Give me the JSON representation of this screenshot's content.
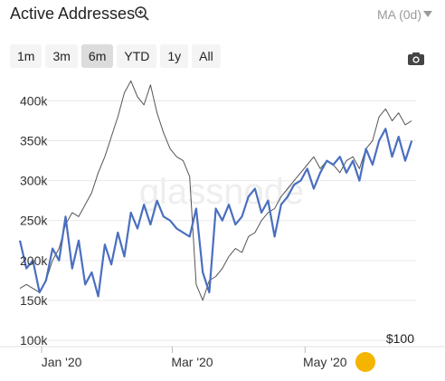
{
  "header": {
    "title": "Active Addresses",
    "ma_label": "MA (0d)"
  },
  "ranges": [
    {
      "label": "1m",
      "active": false
    },
    {
      "label": "3m",
      "active": false
    },
    {
      "label": "6m",
      "active": true
    },
    {
      "label": "YTD",
      "active": false
    },
    {
      "label": "1y",
      "active": false
    },
    {
      "label": "All",
      "active": false
    }
  ],
  "chart_data": {
    "type": "line",
    "title": "",
    "xlabel": "",
    "ylabel": "",
    "y_ticks": [
      "100k",
      "150k",
      "200k",
      "250k",
      "300k",
      "350k",
      "400k"
    ],
    "ylim": [
      100000,
      430000
    ],
    "x_ticks": [
      {
        "label": "Jan '20",
        "date": "2020-01-01"
      },
      {
        "label": "Mar '20",
        "date": "2020-03-01"
      },
      {
        "label": "May '20",
        "date": "2020-05-01"
      }
    ],
    "xlim": [
      "2019-12-22",
      "2020-06-21"
    ],
    "right_axis_label": "$100",
    "grid": "horizontal",
    "watermark": "glassnode",
    "series": [
      {
        "role": "active_addresses",
        "color": "#4a6fc0",
        "x": [
          "2019-12-22",
          "2019-12-25",
          "2019-12-28",
          "2019-12-31",
          "2020-01-03",
          "2020-01-06",
          "2020-01-09",
          "2020-01-12",
          "2020-01-15",
          "2020-01-18",
          "2020-01-21",
          "2020-01-24",
          "2020-01-27",
          "2020-01-30",
          "2020-02-02",
          "2020-02-05",
          "2020-02-08",
          "2020-02-11",
          "2020-02-14",
          "2020-02-17",
          "2020-02-20",
          "2020-02-23",
          "2020-02-26",
          "2020-02-29",
          "2020-03-03",
          "2020-03-06",
          "2020-03-09",
          "2020-03-12",
          "2020-03-15",
          "2020-03-18",
          "2020-03-21",
          "2020-03-24",
          "2020-03-27",
          "2020-03-30",
          "2020-04-02",
          "2020-04-05",
          "2020-04-08",
          "2020-04-11",
          "2020-04-14",
          "2020-04-17",
          "2020-04-20",
          "2020-04-23",
          "2020-04-26",
          "2020-04-29",
          "2020-05-02",
          "2020-05-05",
          "2020-05-08",
          "2020-05-11",
          "2020-05-14",
          "2020-05-17",
          "2020-05-20",
          "2020-05-23",
          "2020-05-26",
          "2020-05-29",
          "2020-06-01",
          "2020-06-04",
          "2020-06-07",
          "2020-06-10",
          "2020-06-13",
          "2020-06-16",
          "2020-06-19"
        ],
        "y": [
          225000,
          190000,
          200000,
          160000,
          175000,
          215000,
          200000,
          255000,
          190000,
          225000,
          170000,
          185000,
          155000,
          220000,
          195000,
          235000,
          205000,
          260000,
          240000,
          270000,
          245000,
          275000,
          255000,
          250000,
          240000,
          235000,
          230000,
          265000,
          185000,
          160000,
          265000,
          250000,
          270000,
          245000,
          255000,
          280000,
          290000,
          260000,
          275000,
          230000,
          270000,
          280000,
          295000,
          300000,
          315000,
          290000,
          310000,
          325000,
          320000,
          330000,
          310000,
          325000,
          300000,
          340000,
          320000,
          350000,
          365000,
          330000,
          355000,
          325000,
          350000
        ]
      },
      {
        "role": "price",
        "color": "#555555",
        "x": [
          "2019-12-22",
          "2019-12-25",
          "2019-12-28",
          "2019-12-31",
          "2020-01-03",
          "2020-01-06",
          "2020-01-09",
          "2020-01-12",
          "2020-01-15",
          "2020-01-18",
          "2020-01-21",
          "2020-01-24",
          "2020-01-27",
          "2020-01-30",
          "2020-02-02",
          "2020-02-05",
          "2020-02-08",
          "2020-02-11",
          "2020-02-14",
          "2020-02-17",
          "2020-02-20",
          "2020-02-23",
          "2020-02-26",
          "2020-02-29",
          "2020-03-03",
          "2020-03-06",
          "2020-03-09",
          "2020-03-12",
          "2020-03-15",
          "2020-03-18",
          "2020-03-21",
          "2020-03-24",
          "2020-03-27",
          "2020-03-30",
          "2020-04-02",
          "2020-04-05",
          "2020-04-08",
          "2020-04-11",
          "2020-04-14",
          "2020-04-17",
          "2020-04-20",
          "2020-04-23",
          "2020-04-26",
          "2020-04-29",
          "2020-05-02",
          "2020-05-05",
          "2020-05-08",
          "2020-05-11",
          "2020-05-14",
          "2020-05-17",
          "2020-05-20",
          "2020-05-23",
          "2020-05-26",
          "2020-05-29",
          "2020-06-01",
          "2020-06-04",
          "2020-06-07",
          "2020-06-10",
          "2020-06-13",
          "2020-06-16",
          "2020-06-19"
        ],
        "y": [
          165000,
          170000,
          165000,
          160000,
          175000,
          200000,
          215000,
          245000,
          260000,
          255000,
          270000,
          285000,
          310000,
          330000,
          355000,
          380000,
          410000,
          425000,
          405000,
          395000,
          420000,
          385000,
          360000,
          340000,
          330000,
          325000,
          305000,
          170000,
          150000,
          175000,
          180000,
          190000,
          205000,
          215000,
          210000,
          230000,
          235000,
          250000,
          260000,
          265000,
          280000,
          290000,
          300000,
          310000,
          320000,
          330000,
          315000,
          325000,
          320000,
          310000,
          325000,
          330000,
          315000,
          340000,
          350000,
          380000,
          390000,
          375000,
          385000,
          370000,
          375000
        ]
      }
    ]
  }
}
